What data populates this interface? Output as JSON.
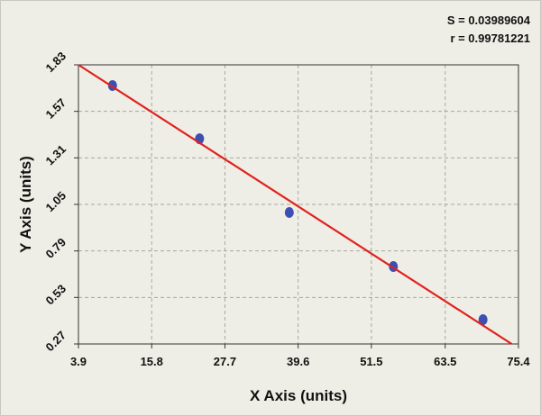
{
  "chart_data": {
    "type": "scatter",
    "x_label": "X Axis (units)",
    "y_label": "Y Axis (units)",
    "annotations": [
      "S = 0.03989604",
      "r = 0.99781221"
    ],
    "x": [
      9.44,
      23.58,
      38.16,
      55.07,
      69.64
    ],
    "values": [
      1.714,
      1.417,
      1.005,
      0.703,
      0.406
    ],
    "color": "#3b4fb4",
    "fit_x": [
      3.9,
      74.3
    ],
    "fit_y": [
      1.83,
      0.27
    ],
    "fit_color": "#e0231e",
    "xlim": [
      3.9,
      75.4
    ],
    "xticks": [
      3.9,
      15.8,
      27.7,
      39.6,
      51.5,
      63.5,
      75.4
    ],
    "ylim": [
      0.27,
      1.83
    ],
    "yticks": [
      0.27,
      0.53,
      0.79,
      1.05,
      1.31,
      1.57,
      1.83
    ],
    "grid": true
  }
}
